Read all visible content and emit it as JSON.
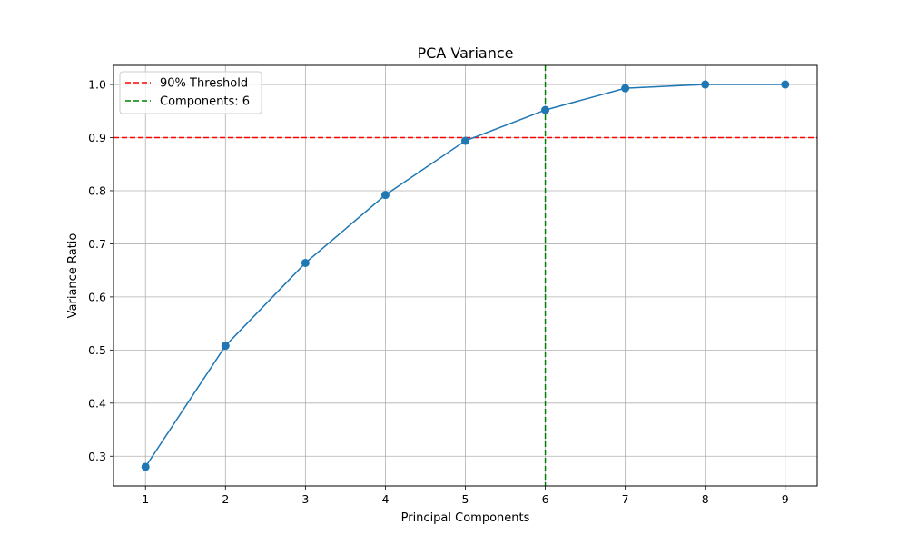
{
  "chart_data": {
    "type": "line",
    "title": "PCA Variance",
    "xlabel": "Principal Components",
    "ylabel": "Variance Ratio",
    "x": [
      1,
      2,
      3,
      4,
      5,
      6,
      7,
      8,
      9
    ],
    "xlim": [
      0.6,
      9.4
    ],
    "ylim": [
      0.244,
      1.036
    ],
    "xticks": [
      "1",
      "2",
      "3",
      "4",
      "5",
      "6",
      "7",
      "8",
      "9"
    ],
    "xtick_values": [
      1,
      2,
      3,
      4,
      5,
      6,
      7,
      8,
      9
    ],
    "yticks": [
      "0.3",
      "0.4",
      "0.5",
      "0.6",
      "0.7",
      "0.8",
      "0.9",
      "1.0"
    ],
    "ytick_values": [
      0.3,
      0.4,
      0.5,
      0.6,
      0.7,
      0.8,
      0.9,
      1.0
    ],
    "grid": true,
    "series": [
      {
        "values": [
          0.28,
          0.508,
          0.664,
          0.792,
          0.894,
          0.952,
          0.993,
          1.0,
          1.0
        ],
        "color": "#1f77b4",
        "marker": "circle"
      }
    ],
    "reference_lines": [
      {
        "orientation": "horizontal",
        "value": 0.9,
        "label": "90% Threshold",
        "color": "#ff0000",
        "style": "dashed"
      },
      {
        "orientation": "vertical",
        "value": 6,
        "label": "Components: 6",
        "color": "#008000",
        "style": "dashed"
      }
    ],
    "legend": {
      "placement": "upper-left",
      "entries": [
        "90% Threshold",
        "Components: 6"
      ]
    }
  }
}
